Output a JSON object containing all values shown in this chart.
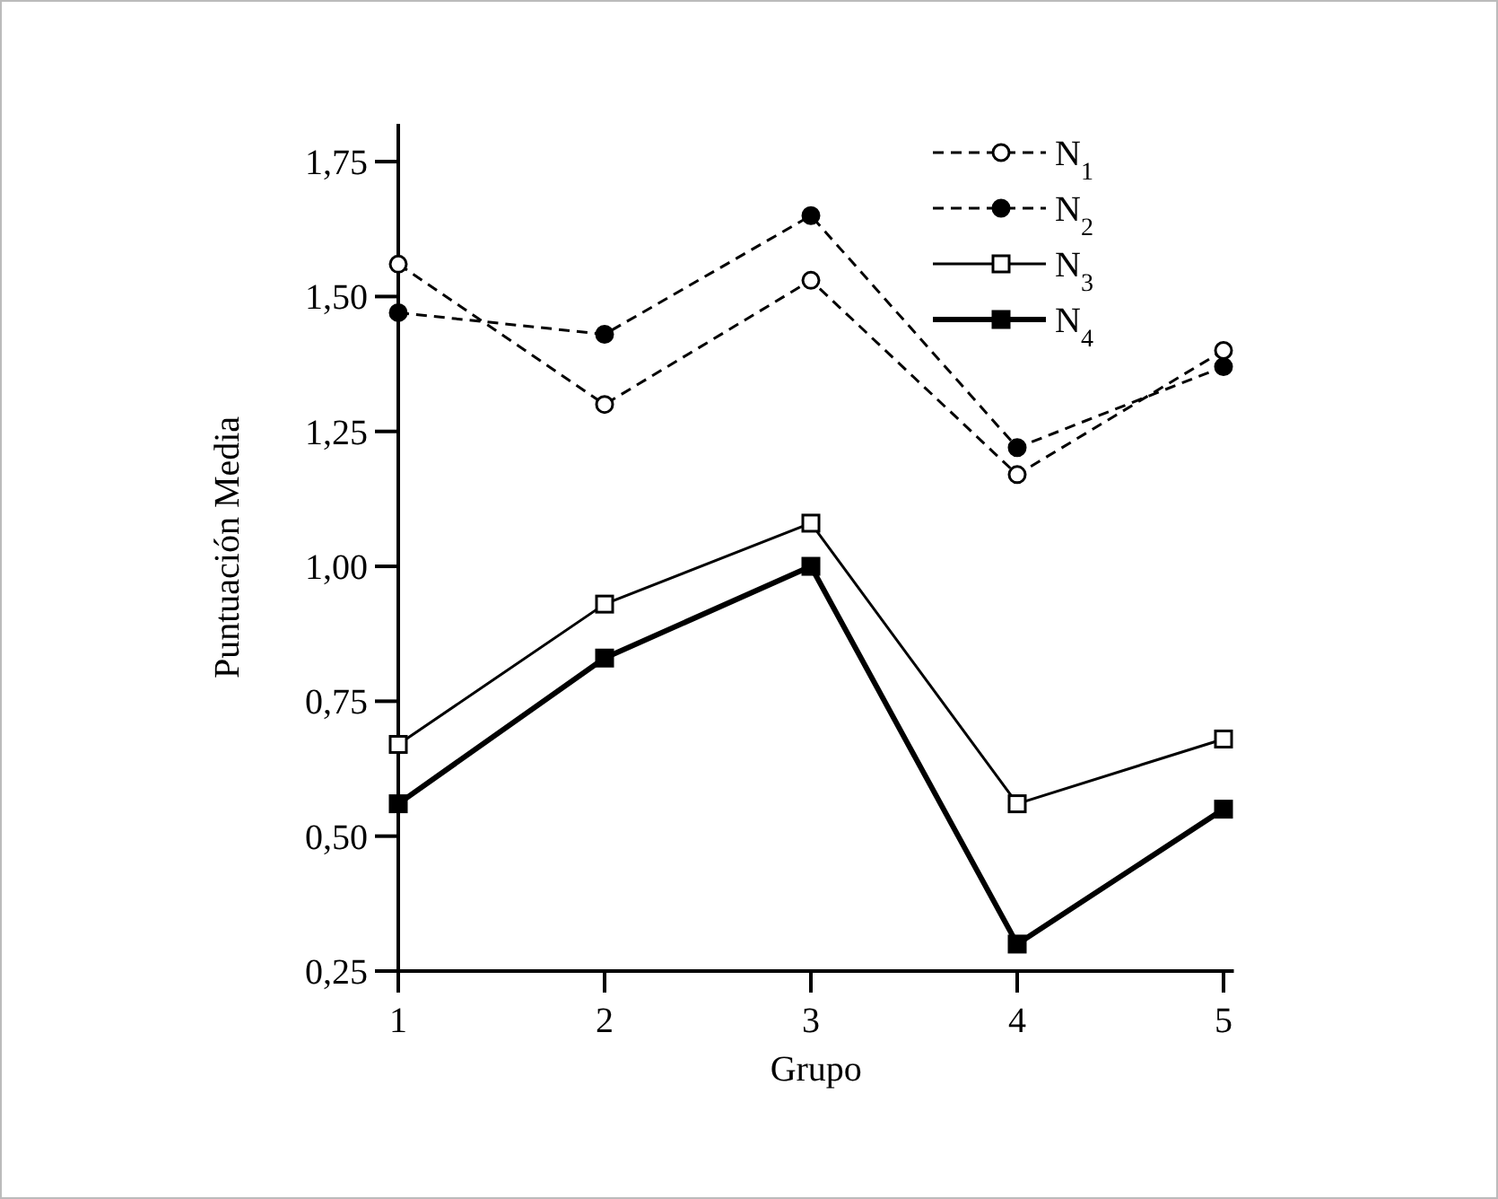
{
  "chart_data": {
    "type": "line",
    "xlabel": "Grupo",
    "ylabel": "Puntuación Media",
    "x": [
      1,
      2,
      3,
      4,
      5
    ],
    "xlim": [
      1,
      5.05
    ],
    "xticks": [
      1,
      2,
      3,
      4,
      5
    ],
    "ylim": [
      0.25,
      1.82
    ],
    "yticks": [
      {
        "value": 0.25,
        "label": "0,25"
      },
      {
        "value": 0.5,
        "label": "0,50"
      },
      {
        "value": 0.75,
        "label": "0,75"
      },
      {
        "value": 1,
        "label": "1,00"
      },
      {
        "value": 1.25,
        "label": "1,25"
      },
      {
        "value": 1.5,
        "label": "1,50"
      },
      {
        "value": 1.75,
        "label": "1,75"
      }
    ],
    "legend": "top right",
    "grid": false,
    "series": [
      {
        "name": "N$_{1}$",
        "color": "#000000",
        "values": [
          1.56,
          1.3,
          1.53,
          1.17,
          1.4
        ],
        "marker": "circle",
        "line_style": "dashed"
      },
      {
        "name": "N$_{2}$",
        "color": "#000000",
        "values": [
          1.47,
          1.43,
          1.65,
          1.22,
          1.37
        ],
        "marker": "circle",
        "line_style": "dashed"
      },
      {
        "name": "N$_{3}$",
        "color": "#000000",
        "values": [
          0.67,
          0.93,
          1.08,
          0.56,
          0.68
        ],
        "marker": "square",
        "line_style": "solid"
      },
      {
        "name": "N$_{4}$",
        "color": "#000000",
        "values": [
          0.56,
          0.83,
          1.0,
          0.3,
          0.55
        ],
        "marker": "square",
        "line_style": "solid"
      }
    ]
  }
}
